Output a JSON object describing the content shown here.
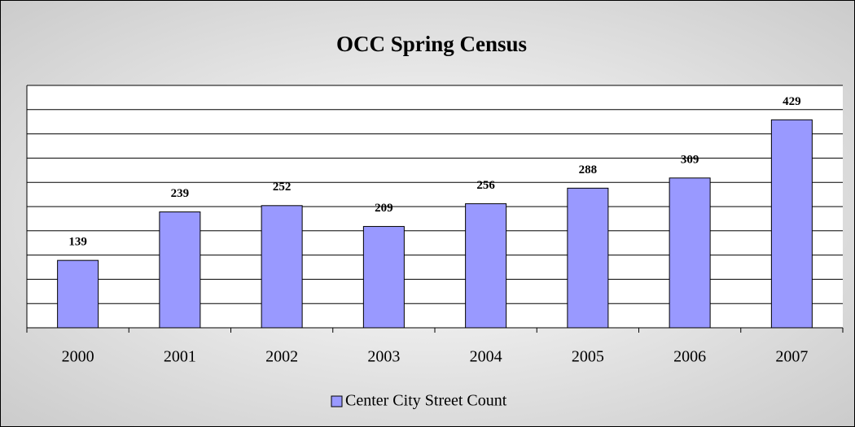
{
  "chart_data": {
    "type": "bar",
    "title": "OCC Spring Census",
    "categories": [
      "2000",
      "2001",
      "2002",
      "2003",
      "2004",
      "2005",
      "2006",
      "2007"
    ],
    "series": [
      {
        "name": "Center City Street Count",
        "color": "#9999ff",
        "values": [
          139,
          239,
          252,
          209,
          256,
          288,
          309,
          429
        ]
      }
    ],
    "ylim": [
      0,
      500
    ],
    "yticks": [
      0,
      50,
      100,
      150,
      200,
      250,
      300,
      350,
      400,
      450,
      500
    ],
    "grid": true,
    "legend": "bottom"
  }
}
